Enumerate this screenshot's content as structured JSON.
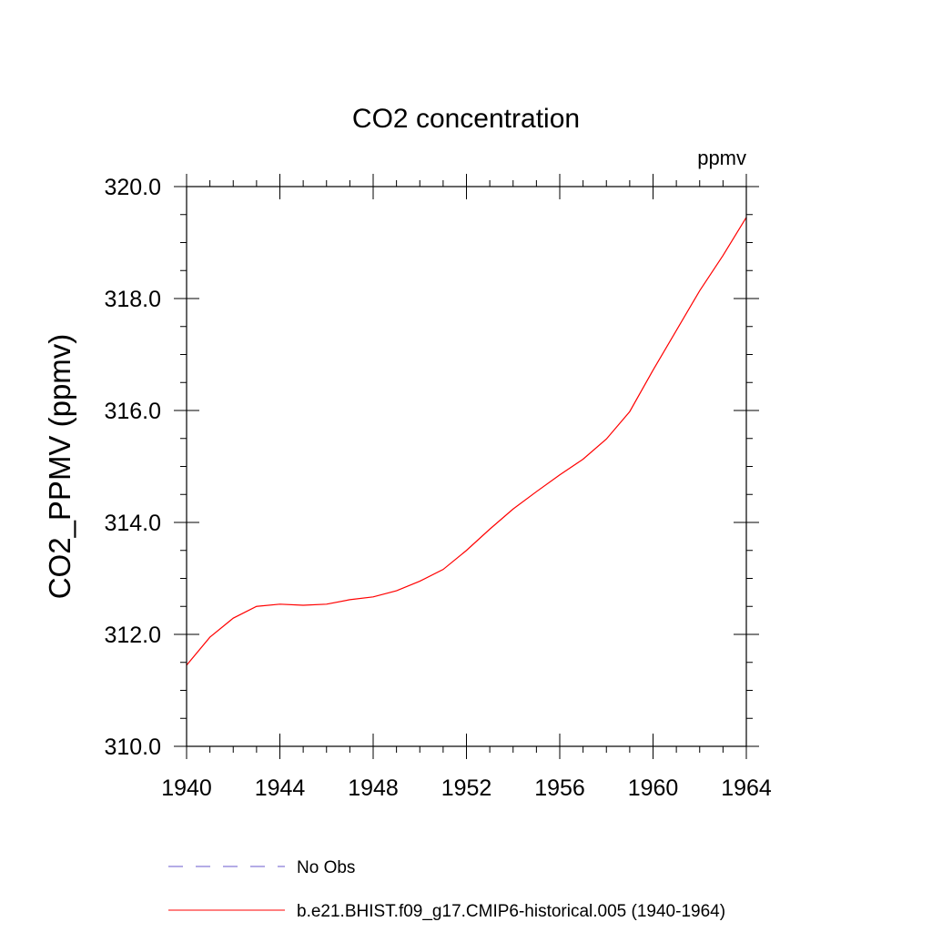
{
  "chart_data": {
    "type": "line",
    "title": "CO2 concentration",
    "units_label": "ppmv",
    "ylabel": "CO2_PPMV  (ppmv)",
    "xlabel": "",
    "xlim": [
      1940,
      1964
    ],
    "ylim": [
      310.0,
      320.0
    ],
    "x_ticks": [
      1940,
      1944,
      1948,
      1952,
      1956,
      1960,
      1964
    ],
    "x_tick_labels": [
      "1940",
      "1944",
      "1948",
      "1952",
      "1956",
      "1960",
      "1964"
    ],
    "y_ticks": [
      310,
      312,
      314,
      316,
      318,
      320
    ],
    "y_tick_labels": [
      "310.0",
      "312.0",
      "314.0",
      "316.0",
      "318.0",
      "320.0"
    ],
    "grid": false,
    "legend_position": "bottom",
    "series": [
      {
        "name": "No Obs",
        "color": "#6a5acd",
        "style": "dashed",
        "x": [],
        "y": []
      },
      {
        "name": "b.e21.BHIST.f09_g17.CMIP6-historical.005 (1940-1964)",
        "color": "#ff0000",
        "style": "solid",
        "x": [
          1940,
          1941,
          1942,
          1943,
          1944,
          1945,
          1946,
          1947,
          1948,
          1949,
          1950,
          1951,
          1952,
          1953,
          1954,
          1955,
          1956,
          1957,
          1958,
          1959,
          1960,
          1961,
          1962,
          1963,
          1964
        ],
        "y": [
          311.45,
          311.95,
          312.29,
          312.5,
          312.54,
          312.52,
          312.54,
          312.62,
          312.67,
          312.78,
          312.95,
          313.16,
          313.5,
          313.88,
          314.24,
          314.55,
          314.85,
          315.13,
          315.49,
          315.98,
          316.72,
          317.43,
          318.14,
          318.77,
          319.45
        ]
      }
    ]
  }
}
